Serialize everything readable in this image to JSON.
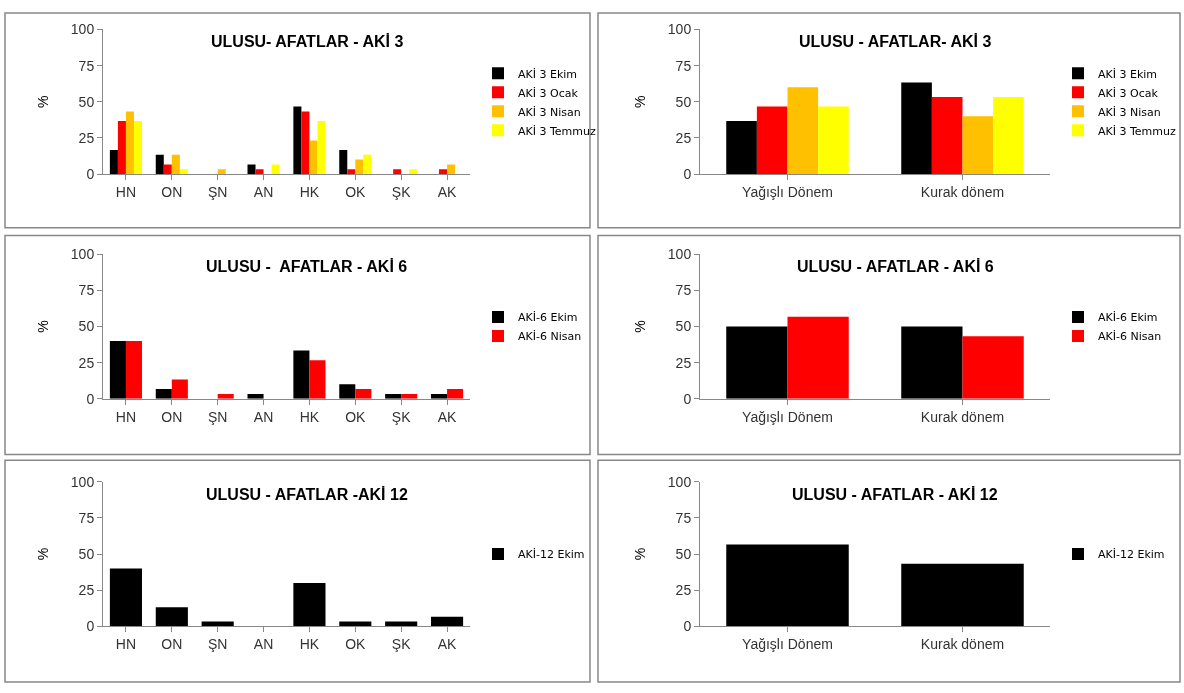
{
  "chart_data": [
    {
      "type": "bar",
      "title": "ULUSU- AFATLAR - AKİ 3",
      "ylabel": "%",
      "categories": [
        "HN",
        "ON",
        "ŞN",
        "AN",
        "HK",
        "OK",
        "ŞK",
        "AK"
      ],
      "ylim": [
        0,
        100
      ],
      "yticks": [
        0,
        25,
        50,
        75,
        100
      ],
      "grid": false,
      "legend": "right",
      "series": [
        {
          "name": "AKİ 3 Ekim",
          "color": "#000000",
          "values": [
            16.7,
            13.3,
            0,
            6.7,
            46.7,
            16.7,
            0,
            0
          ]
        },
        {
          "name": "AKİ 3 Ocak",
          "color": "#ff0000",
          "values": [
            36.7,
            6.7,
            0,
            3.3,
            43.3,
            3.3,
            3.3,
            3.3
          ]
        },
        {
          "name": "AKİ 3 Nisan",
          "color": "#ffc000",
          "values": [
            43.3,
            13.3,
            3.3,
            0,
            23.3,
            10,
            0,
            6.7
          ]
        },
        {
          "name": "AKİ 3 Temmuz",
          "color": "#ffff00",
          "values": [
            36.7,
            3.3,
            0,
            6.7,
            36.7,
            13.3,
            3.3,
            0
          ]
        }
      ]
    },
    {
      "type": "bar",
      "title": "ULUSU - AFATLAR- AKİ 3",
      "ylabel": "%",
      "categories": [
        "Yağışlı Dönem",
        "Kurak dönem"
      ],
      "ylim": [
        0,
        100
      ],
      "yticks": [
        0,
        25,
        50,
        75,
        100
      ],
      "grid": false,
      "legend": "right",
      "series": [
        {
          "name": "AKİ 3 Ekim",
          "color": "#000000",
          "values": [
            36.7,
            63.3
          ]
        },
        {
          "name": "AKİ 3 Ocak",
          "color": "#ff0000",
          "values": [
            46.7,
            53.3
          ]
        },
        {
          "name": "AKİ 3 Nisan",
          "color": "#ffc000",
          "values": [
            60,
            40
          ]
        },
        {
          "name": "AKİ 3 Temmuz",
          "color": "#ffff00",
          "values": [
            46.7,
            53.3
          ]
        }
      ]
    },
    {
      "type": "bar",
      "title": "ULUSU -  AFATLAR - AKİ 6",
      "ylabel": "%",
      "categories": [
        "HN",
        "ON",
        "ŞN",
        "AN",
        "HK",
        "OK",
        "ŞK",
        "AK"
      ],
      "ylim": [
        0,
        100
      ],
      "yticks": [
        0,
        25,
        50,
        75,
        100
      ],
      "grid": false,
      "legend": "right",
      "series": [
        {
          "name": "AKİ-6 Ekim",
          "color": "#000000",
          "values": [
            40,
            6.7,
            0,
            3.3,
            33.3,
            10,
            3.3,
            3.3
          ]
        },
        {
          "name": "AKİ-6 Nisan",
          "color": "#ff0000",
          "values": [
            40,
            13.3,
            3.3,
            0,
            26.7,
            6.7,
            3.3,
            6.7
          ]
        }
      ]
    },
    {
      "type": "bar",
      "title": "ULUSU - AFATLAR - AKİ 6",
      "ylabel": "%",
      "categories": [
        "Yağışlı Dönem",
        "Kurak dönem"
      ],
      "ylim": [
        0,
        100
      ],
      "yticks": [
        0,
        25,
        50,
        75,
        100
      ],
      "grid": false,
      "legend": "right",
      "series": [
        {
          "name": "AKİ-6 Ekim",
          "color": "#000000",
          "values": [
            50,
            50
          ]
        },
        {
          "name": "AKİ-6 Nisan",
          "color": "#ff0000",
          "values": [
            56.7,
            43.3
          ]
        }
      ]
    },
    {
      "type": "bar",
      "title": "ULUSU - AFATLAR -AKİ 12",
      "ylabel": "%",
      "categories": [
        "HN",
        "ON",
        "ŞN",
        "AN",
        "HK",
        "OK",
        "ŞK",
        "AK"
      ],
      "ylim": [
        0,
        100
      ],
      "yticks": [
        0,
        25,
        50,
        75,
        100
      ],
      "grid": false,
      "legend": "right",
      "series": [
        {
          "name": "AKİ-12 Ekim",
          "color": "#000000",
          "values": [
            40,
            13.3,
            3.3,
            0,
            30,
            3.3,
            3.3,
            6.7
          ]
        }
      ]
    },
    {
      "type": "bar",
      "title": "ULUSU - AFATLAR - AKİ 12",
      "ylabel": "%",
      "categories": [
        "Yağışlı Dönem",
        "Kurak dönem"
      ],
      "ylim": [
        0,
        100
      ],
      "yticks": [
        0,
        25,
        50,
        75,
        100
      ],
      "grid": false,
      "legend": "right",
      "series": [
        {
          "name": "AKİ-12 Ekim",
          "color": "#000000",
          "values": [
            56.7,
            43.3
          ]
        }
      ]
    }
  ]
}
